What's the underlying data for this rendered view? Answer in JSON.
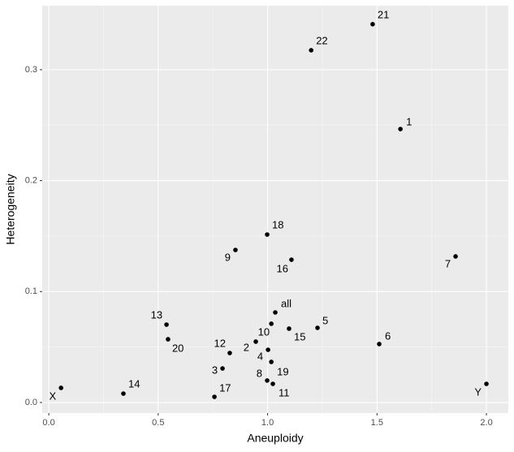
{
  "chart_data": {
    "type": "scatter",
    "x_label": "Aneuploidy",
    "y_label": "Heterogeneity",
    "point_labels": [
      "21",
      "22",
      "1",
      "18",
      "9",
      "16",
      "7",
      "all",
      "13",
      "5",
      "10",
      "15",
      "20",
      "6",
      "2",
      "12",
      "4",
      "3",
      "19",
      "8",
      "11",
      "17",
      "14",
      "X",
      "Y"
    ],
    "x": [
      1.48,
      1.199,
      1.607,
      0.998,
      0.853,
      1.109,
      1.859,
      1.035,
      0.538,
      1.228,
      1.017,
      1.098,
      0.545,
      1.51,
      0.946,
      0.827,
      1.002,
      0.794,
      1.017,
      0.998,
      1.024,
      0.757,
      0.341,
      0.056,
      2.0
    ],
    "values": [
      0.341,
      0.3175,
      0.2465,
      0.1514,
      0.1375,
      0.1287,
      0.1317,
      0.0812,
      0.0702,
      0.0673,
      0.071,
      0.0666,
      0.057,
      0.0527,
      0.0549,
      0.0446,
      0.0475,
      0.0307,
      0.0366,
      0.0198,
      0.0168,
      0.0051,
      0.008,
      0.0132,
      0.0168
    ],
    "color": "#000000",
    "xlim": [
      -0.03,
      2.1
    ],
    "ylim": [
      -0.0095,
      0.3577
    ],
    "xticks": [
      {
        "value": 0,
        "label": "0.0"
      },
      {
        "value": 0.5,
        "label": "0.5"
      },
      {
        "value": 1,
        "label": "1.0"
      },
      {
        "value": 1.5,
        "label": "1.5"
      },
      {
        "value": 2,
        "label": "2.0"
      }
    ],
    "yticks": [
      {
        "value": 0,
        "label": "0.0"
      },
      {
        "value": 0.1,
        "label": "0.1"
      },
      {
        "value": 0.2,
        "label": "0.2"
      },
      {
        "value": 0.3,
        "label": "0.3"
      }
    ],
    "grid": true
  }
}
